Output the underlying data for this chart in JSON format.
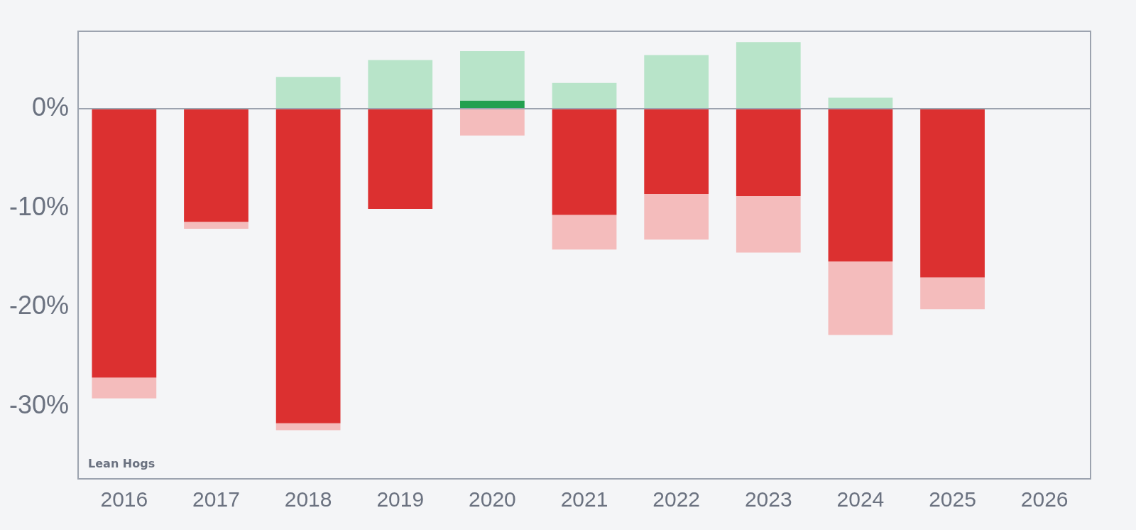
{
  "chart_data": {
    "type": "bar",
    "stacked": true,
    "categories": [
      "2016",
      "2017",
      "2018",
      "2019",
      "2020",
      "2021",
      "2022",
      "2023",
      "2024",
      "2025",
      "2026"
    ],
    "series": [
      {
        "values": [
          -27.1,
          -11.4,
          -31.7,
          -10.1,
          0.8,
          -10.7,
          -8.6,
          -8.8,
          -15.4,
          -17.0,
          null
        ],
        "colors": [
          "#dc3030",
          "#dc3030",
          "#dc3030",
          "#dc3030",
          "#22a04f",
          "#dc3030",
          "#dc3030",
          "#dc3030",
          "#dc3030",
          "#dc3030",
          "#dc3030"
        ]
      },
      {
        "color": "#f4bcbc",
        "values": [
          -2.1,
          -0.7,
          -0.7,
          null,
          -2.7,
          -3.5,
          -4.6,
          -5.7,
          -7.4,
          -3.2,
          null
        ]
      },
      {
        "color": "#b8e4c9",
        "values": [
          null,
          null,
          3.2,
          4.9,
          5.0,
          2.6,
          5.4,
          6.7,
          1.1,
          null,
          null
        ]
      }
    ],
    "ylim": [
      -37.3,
      7.8
    ],
    "yticks": [
      {
        "value": -30,
        "label": "-30%"
      },
      {
        "value": -20,
        "label": "-20%"
      },
      {
        "value": -10,
        "label": "-10%"
      },
      {
        "value": 0,
        "label": "0%"
      }
    ],
    "ref_lines": [
      {
        "axis": "y",
        "value": 0,
        "color": "#9ca3af"
      }
    ],
    "grid": false,
    "legend": false,
    "annotations": [
      "Lean Hogs"
    ]
  }
}
